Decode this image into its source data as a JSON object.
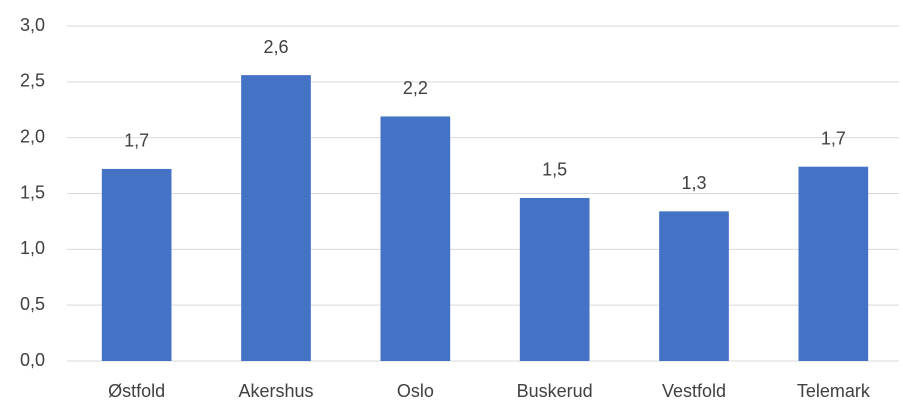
{
  "chart_data": {
    "type": "bar",
    "categories": [
      "Østfold",
      "Akershus",
      "Oslo",
      "Buskerud",
      "Vestfold",
      "Telemark"
    ],
    "values": [
      1.72,
      2.56,
      2.19,
      1.46,
      1.34,
      1.74
    ],
    "value_labels": [
      "1,7",
      "2,6",
      "2,2",
      "1,5",
      "1,3",
      "1,7"
    ],
    "color": "#4472c4",
    "ylim": [
      0,
      3
    ],
    "yticks": [
      {
        "value": 0,
        "label": "0,0"
      },
      {
        "value": 0.5,
        "label": "0,5"
      },
      {
        "value": 1,
        "label": "1,0"
      },
      {
        "value": 1.5,
        "label": "1,5"
      },
      {
        "value": 2,
        "label": "2,0"
      },
      {
        "value": 2.5,
        "label": "2,5"
      },
      {
        "value": 3,
        "label": "3,0"
      }
    ],
    "grid": true
  }
}
